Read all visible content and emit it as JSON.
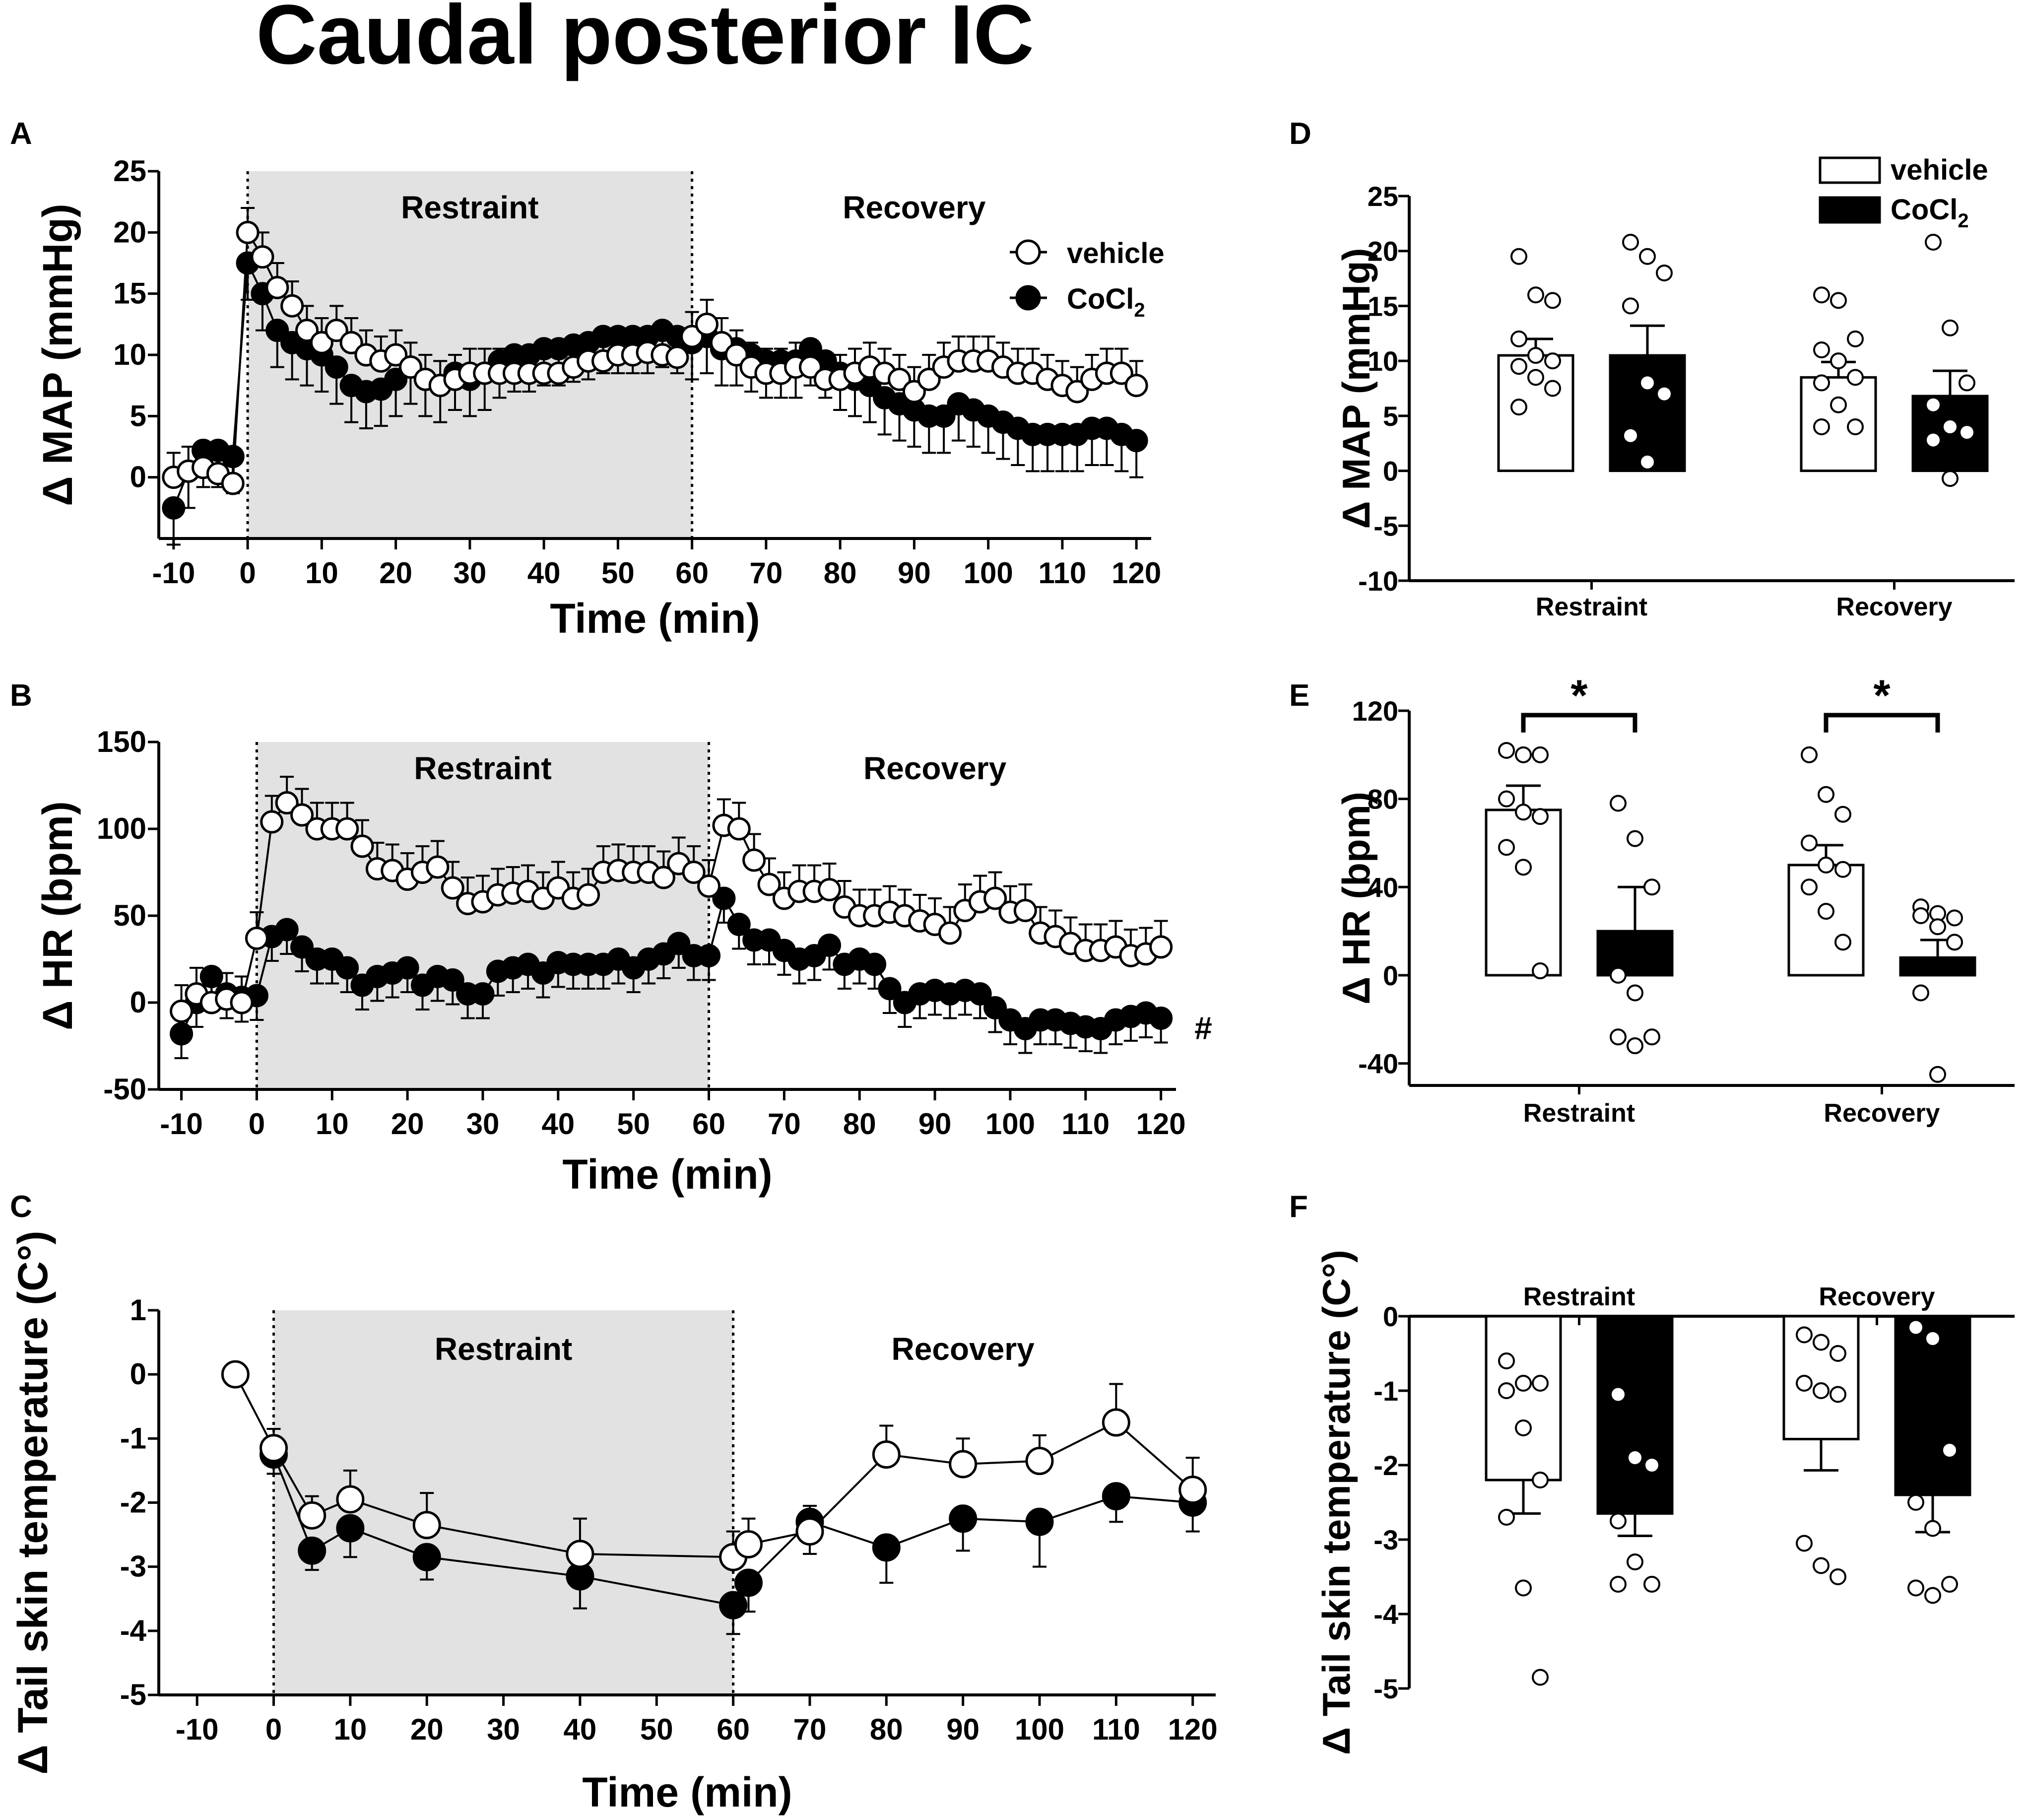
{
  "title": "Caudal posterior IC",
  "colors": {
    "vehicle": "#ffffff",
    "cocl2": "#000000",
    "shade": "#e2e2e2"
  },
  "legend": {
    "vehicle": "vehicle",
    "cocl2": "CoCl",
    "cocl2_sub": "2"
  },
  "chart_data": [
    {
      "panel": "A",
      "type": "line",
      "xlabel": "Time (min)",
      "ylabel": "Δ MAP (mmHg)",
      "xlim": [
        -12,
        122
      ],
      "ylim": [
        -5,
        25
      ],
      "xticks": [
        -10,
        0,
        10,
        20,
        30,
        40,
        50,
        60,
        70,
        80,
        90,
        100,
        110,
        120
      ],
      "yticks": [
        0,
        5,
        10,
        15,
        20,
        25
      ],
      "tick_labels_y": [
        "0",
        "5",
        "10",
        "15",
        "20",
        "25"
      ],
      "phase_labels": [
        "Restraint",
        "Recovery"
      ],
      "restraint_range": [
        0,
        60
      ],
      "legend": true,
      "series": [
        {
          "name": "vehicle",
          "x": [
            -10,
            -8,
            -6,
            -4,
            -2,
            0,
            2,
            4,
            6,
            8,
            10,
            12,
            14,
            16,
            18,
            20,
            22,
            24,
            26,
            28,
            30,
            32,
            34,
            36,
            38,
            40,
            42,
            44,
            46,
            48,
            50,
            52,
            54,
            56,
            58,
            60,
            62,
            64,
            66,
            68,
            70,
            72,
            74,
            76,
            78,
            80,
            82,
            84,
            86,
            88,
            90,
            92,
            94,
            96,
            98,
            100,
            102,
            104,
            106,
            108,
            110,
            112,
            114,
            116,
            118,
            120
          ],
          "y": [
            0,
            0.5,
            0.8,
            0.3,
            -0.5,
            20,
            18,
            15.5,
            14,
            12,
            11,
            12,
            11,
            10,
            9.5,
            10,
            9,
            8,
            7.5,
            8,
            8.5,
            8.5,
            8.5,
            8.5,
            8.5,
            8.5,
            8.5,
            9,
            9.5,
            9.5,
            10,
            10,
            10.2,
            10,
            9.8,
            11.5,
            12.5,
            11,
            10,
            9,
            8.5,
            8.5,
            9,
            9,
            8,
            8,
            8.5,
            9,
            8.5,
            8,
            7,
            8,
            9,
            9.5,
            9.5,
            9.5,
            9,
            8.5,
            8.5,
            8,
            7.5,
            7,
            8,
            8.5,
            8.5,
            7.5
          ],
          "err": 2
        },
        {
          "name": "CoCl2",
          "x": [
            -10,
            -8,
            -6,
            -4,
            -2,
            0,
            2,
            4,
            6,
            8,
            10,
            12,
            14,
            16,
            18,
            20,
            22,
            24,
            26,
            28,
            30,
            32,
            34,
            36,
            38,
            40,
            42,
            44,
            46,
            48,
            50,
            52,
            54,
            56,
            58,
            60,
            62,
            64,
            66,
            68,
            70,
            72,
            74,
            76,
            78,
            80,
            82,
            84,
            86,
            88,
            90,
            92,
            94,
            96,
            98,
            100,
            102,
            104,
            106,
            108,
            110,
            112,
            114,
            116,
            118,
            120
          ],
          "y": [
            -2.5,
            0.5,
            2.2,
            2.2,
            1.7,
            17.5,
            15,
            12,
            11,
            10.5,
            10,
            9,
            7.5,
            7,
            7.2,
            8,
            9,
            8,
            7.5,
            8.5,
            8,
            8.5,
            9.5,
            10,
            10,
            10.5,
            10.5,
            10.8,
            11,
            11.5,
            11.5,
            11.5,
            11.5,
            12,
            11.5,
            11,
            11.5,
            10.5,
            10.5,
            10,
            9.5,
            9.5,
            9.5,
            10.5,
            9.5,
            8.5,
            8,
            7.5,
            6.5,
            6,
            5.5,
            5,
            5,
            6,
            5.5,
            5,
            4.5,
            4,
            3.5,
            3.5,
            3.5,
            3.5,
            4,
            4,
            3.5,
            3
          ],
          "err": 3
        }
      ]
    },
    {
      "panel": "B",
      "type": "line",
      "xlabel": "Time (min)",
      "ylabel": "Δ HR (bpm)",
      "xlim": [
        -13,
        122
      ],
      "ylim": [
        -50,
        150
      ],
      "xticks": [
        -10,
        0,
        10,
        20,
        30,
        40,
        50,
        60,
        70,
        80,
        90,
        100,
        110,
        120
      ],
      "yticks": [
        -50,
        0,
        50,
        100,
        150
      ],
      "tick_labels_y": [
        "-50",
        "0",
        "50",
        "100",
        "150"
      ],
      "phase_labels": [
        "Restraint",
        "Recovery"
      ],
      "restraint_range": [
        0,
        60
      ],
      "annotation": "#",
      "series": [
        {
          "name": "vehicle",
          "x": [
            -10,
            -8,
            -6,
            -4,
            -2,
            0,
            2,
            4,
            6,
            8,
            10,
            12,
            14,
            16,
            18,
            20,
            22,
            24,
            26,
            28,
            30,
            32,
            34,
            36,
            38,
            40,
            42,
            44,
            46,
            48,
            50,
            52,
            54,
            56,
            58,
            60,
            62,
            64,
            66,
            68,
            70,
            72,
            74,
            76,
            78,
            80,
            82,
            84,
            86,
            88,
            90,
            92,
            94,
            96,
            98,
            100,
            102,
            104,
            106,
            108,
            110,
            112,
            114,
            116,
            118,
            120
          ],
          "y": [
            -5,
            5,
            0,
            2,
            0,
            37,
            104,
            115,
            108,
            100,
            100,
            100,
            90,
            77,
            76,
            71,
            75,
            78,
            66,
            57,
            58,
            62,
            63,
            64,
            60,
            66,
            60,
            62,
            75,
            76,
            75,
            75,
            72,
            80,
            75,
            67,
            102,
            100,
            82,
            68,
            60,
            64,
            64,
            65,
            55,
            50,
            50,
            52,
            50,
            47,
            45,
            40,
            53,
            58,
            60,
            52,
            53,
            40,
            38,
            34,
            30,
            30,
            32,
            27,
            28,
            32
          ],
          "err": 15
        },
        {
          "name": "CoCl2",
          "x": [
            -10,
            -8,
            -6,
            -4,
            -2,
            0,
            2,
            4,
            6,
            8,
            10,
            12,
            14,
            16,
            18,
            20,
            22,
            24,
            26,
            28,
            30,
            32,
            34,
            36,
            38,
            40,
            42,
            44,
            46,
            48,
            50,
            52,
            54,
            56,
            58,
            60,
            62,
            64,
            66,
            68,
            70,
            72,
            74,
            76,
            78,
            80,
            82,
            84,
            86,
            88,
            90,
            92,
            94,
            96,
            98,
            100,
            102,
            104,
            106,
            108,
            110,
            112,
            114,
            116,
            118,
            120
          ],
          "y": [
            -18,
            0,
            15,
            5,
            3,
            4,
            38,
            42,
            32,
            25,
            25,
            20,
            10,
            15,
            17,
            20,
            10,
            15,
            13,
            5,
            5,
            18,
            20,
            22,
            17,
            23,
            22,
            22,
            22,
            25,
            20,
            25,
            28,
            34,
            27,
            27,
            60,
            45,
            36,
            36,
            30,
            25,
            27,
            33,
            22,
            25,
            22,
            8,
            0,
            5,
            7,
            5,
            7,
            5,
            -3,
            -10,
            -15,
            -10,
            -10,
            -12,
            -14,
            -15,
            -10,
            -8,
            -6,
            -9
          ],
          "err": 14
        }
      ]
    },
    {
      "panel": "C",
      "type": "line",
      "xlabel": "Time (min)",
      "ylabel": "Δ Tail skin temperature (C°)",
      "xlim": [
        -15,
        123
      ],
      "ylim": [
        -5,
        1
      ],
      "xticks": [
        -10,
        0,
        10,
        20,
        30,
        40,
        50,
        60,
        70,
        80,
        90,
        100,
        110,
        120
      ],
      "yticks": [
        -5,
        -4,
        -3,
        -2,
        -1,
        0,
        1
      ],
      "tick_labels_y": [
        "-5",
        "-4",
        "-3",
        "-2",
        "-1",
        "0",
        "1"
      ],
      "phase_labels": [
        "Restraint",
        "Recovery"
      ],
      "restraint_range": [
        0,
        60
      ],
      "series": [
        {
          "name": "vehicle",
          "x": [
            -5,
            0,
            5,
            10,
            20,
            40,
            60,
            62,
            70,
            80,
            90,
            100,
            110,
            120
          ],
          "y": [
            0,
            -1.15,
            -2.2,
            -1.95,
            -2.35,
            -2.8,
            -2.85,
            -2.65,
            -2.45,
            -1.25,
            -1.4,
            -1.35,
            -0.75,
            -1.8
          ],
          "err": [
            0,
            0.3,
            0.3,
            0.45,
            0.5,
            0.55,
            0.4,
            0.4,
            0.4,
            0.45,
            0.4,
            0.4,
            0.6,
            0.5
          ]
        },
        {
          "name": "CoCl2",
          "x": [
            0,
            5,
            10,
            20,
            40,
            60,
            62,
            70,
            80,
            90,
            100,
            110,
            120
          ],
          "y": [
            -1.25,
            -2.75,
            -2.4,
            -2.85,
            -3.15,
            -3.6,
            -3.25,
            -2.3,
            -2.7,
            -2.25,
            -2.3,
            -1.9,
            -2.0
          ],
          "err": [
            0.3,
            0.3,
            0.45,
            0.35,
            0.5,
            0.45,
            0.45,
            0.5,
            0.55,
            0.5,
            0.7,
            0.4,
            0.45
          ]
        }
      ]
    },
    {
      "panel": "D",
      "type": "bar",
      "ylabel": "Δ MAP (mmHg)",
      "categories": [
        "Restraint",
        "Recovery"
      ],
      "ylim": [
        -10,
        25
      ],
      "yticks": [
        -10,
        -5,
        0,
        5,
        10,
        15,
        20,
        25
      ],
      "tick_labels_y": [
        "-10",
        "-5",
        "0",
        "5",
        "10",
        "15",
        "20",
        "25"
      ],
      "series": [
        {
          "name": "vehicle",
          "values": [
            10.5,
            8.5
          ],
          "sem": [
            1.5,
            1.4
          ],
          "points": [
            [
              19.5,
              16,
              15.5,
              12,
              10.5,
              10,
              9.5,
              8.5,
              7.5,
              5.8
            ],
            [
              16,
              15.5,
              12,
              11,
              10,
              8.5,
              8,
              6,
              4,
              4
            ]
          ]
        },
        {
          "name": "CoCl2",
          "values": [
            10.5,
            6.8
          ],
          "sem": [
            2.7,
            2.3
          ],
          "points": [
            [
              20.8,
              19.5,
              18,
              15,
              8,
              7,
              3.2,
              0.8
            ],
            [
              20.8,
              13,
              8,
              6,
              4,
              3.5,
              2.8,
              -0.7
            ]
          ]
        }
      ]
    },
    {
      "panel": "E",
      "type": "bar",
      "ylabel": "Δ HR (bpm)",
      "categories": [
        "Restraint",
        "Recovery"
      ],
      "ylim": [
        -50,
        120
      ],
      "yticks": [
        -40,
        0,
        40,
        80,
        120
      ],
      "tick_labels_y": [
        "-40",
        "0",
        "40",
        "80",
        "120"
      ],
      "significance": [
        "*",
        "*"
      ],
      "series": [
        {
          "name": "vehicle",
          "values": [
            75,
            50
          ],
          "sem": [
            11,
            9
          ],
          "points": [
            [
              102,
              100,
              100,
              80,
              74,
              72,
              58,
              49,
              2
            ],
            [
              100,
              82,
              73,
              60,
              50,
              48,
              40,
              29,
              15
            ]
          ]
        },
        {
          "name": "CoCl2",
          "values": [
            20,
            8
          ],
          "sem": [
            20,
            8
          ],
          "points": [
            [
              78,
              62,
              40,
              0,
              -8,
              -28,
              -28,
              -32
            ],
            [
              31,
              28,
              26,
              27,
              22,
              15,
              -8,
              -45
            ]
          ]
        }
      ]
    },
    {
      "panel": "F",
      "type": "bar",
      "ylabel": "Δ Tail skin temperature (C°)",
      "categories": [
        "Restraint",
        "Recovery"
      ],
      "ylim": [
        -5,
        0
      ],
      "yticks": [
        -5,
        -4,
        -3,
        -2,
        -1,
        0
      ],
      "tick_labels_y": [
        "-5",
        "-4",
        "-3",
        "-2",
        "-1",
        "0"
      ],
      "series": [
        {
          "name": "vehicle",
          "values": [
            -2.2,
            -1.65
          ],
          "sem": [
            0.45,
            0.42
          ],
          "points": [
            [
              -0.6,
              -0.9,
              -0.9,
              -1.0,
              -1.5,
              -2.2,
              -2.7,
              -3.65,
              -4.85
            ],
            [
              -0.25,
              -0.35,
              -0.5,
              -0.9,
              -1.0,
              -1.05,
              -3.05,
              -3.35,
              -3.5
            ]
          ]
        },
        {
          "name": "CoCl2",
          "values": [
            -2.65,
            -2.4
          ],
          "sem": [
            0.3,
            0.5
          ],
          "points": [
            [
              -1.05,
              -1.9,
              -2.0,
              -2.75,
              -3.3,
              -3.6,
              -3.6
            ],
            [
              -0.15,
              -0.3,
              -1.8,
              -2.5,
              -2.85,
              -3.6,
              -3.65,
              -3.75
            ]
          ]
        }
      ]
    }
  ]
}
